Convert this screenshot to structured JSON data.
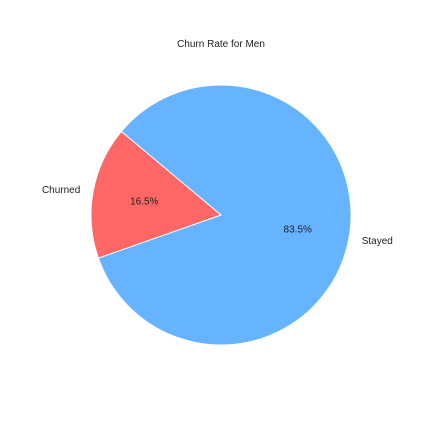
{
  "chart_data": {
    "type": "pie",
    "title": "Churn Rate for Men",
    "slices": [
      {
        "label": "Churned",
        "value": 16.5,
        "pct_label": "16.5%",
        "color": "#ff6666"
      },
      {
        "label": "Stayed",
        "value": 83.5,
        "pct_label": "83.5%",
        "color": "#66b3ff"
      }
    ],
    "start_angle": 140,
    "direction": "counterclockwise",
    "legend": "none"
  }
}
